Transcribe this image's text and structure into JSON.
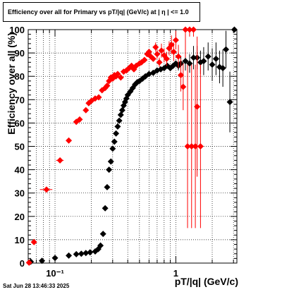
{
  "title": "Efficiency over all for Primary vs pT/|q| (GeV/c) at |  η  | <= 1.0",
  "timestamp": "Sat Jun 28 13:46:33 2025",
  "chart_data": {
    "type": "scatter",
    "title": "Efficiency over all for Primary vs pT/|q| (GeV/c) at |  η  | <= 1.0",
    "xlabel": "pT/|q| (GeV/c)",
    "ylabel": "Efficiency over all (%)",
    "xscale": "log",
    "xlim": [
      0.06,
      3.2
    ],
    "ylim": [
      0,
      100
    ],
    "grid": true,
    "x_ticks": [
      {
        "value": 0.1,
        "label": "10⁻¹"
      },
      {
        "value": 1,
        "label": "1"
      }
    ],
    "y_ticks": [
      0,
      10,
      20,
      30,
      40,
      50,
      60,
      70,
      80,
      90,
      100
    ],
    "series": [
      {
        "color": "#000000",
        "marker": "diamond",
        "points": [
          {
            "x": 0.063,
            "y": 0.6
          },
          {
            "x": 0.078,
            "y": 1.0
          },
          {
            "x": 0.1,
            "y": 2.2
          },
          {
            "x": 0.13,
            "y": 3.2
          },
          {
            "x": 0.15,
            "y": 3.8
          },
          {
            "x": 0.165,
            "y": 4.0
          },
          {
            "x": 0.18,
            "y": 4.3
          },
          {
            "x": 0.195,
            "y": 4.6
          },
          {
            "x": 0.215,
            "y": 5.0
          },
          {
            "x": 0.228,
            "y": 6.0
          },
          {
            "x": 0.238,
            "y": 7.5
          },
          {
            "x": 0.25,
            "y": 12.5
          },
          {
            "x": 0.26,
            "y": 23.5
          },
          {
            "x": 0.27,
            "y": 32.5
          },
          {
            "x": 0.28,
            "y": 40.0
          },
          {
            "x": 0.29,
            "y": 43.5
          },
          {
            "x": 0.3,
            "y": 49.0
          },
          {
            "x": 0.31,
            "y": 52.0
          },
          {
            "x": 0.32,
            "y": 55.5
          },
          {
            "x": 0.33,
            "y": 58.5
          },
          {
            "x": 0.34,
            "y": 61.0
          },
          {
            "x": 0.35,
            "y": 63.5
          },
          {
            "x": 0.36,
            "y": 65.5
          },
          {
            "x": 0.37,
            "y": 67.5
          },
          {
            "x": 0.38,
            "y": 69.0
          },
          {
            "x": 0.39,
            "y": 70.5
          },
          {
            "x": 0.4,
            "y": 72.0
          },
          {
            "x": 0.42,
            "y": 73.5
          },
          {
            "x": 0.44,
            "y": 75.0
          },
          {
            "x": 0.46,
            "y": 76.5
          },
          {
            "x": 0.48,
            "y": 77.5
          },
          {
            "x": 0.5,
            "y": 78.0
          },
          {
            "x": 0.53,
            "y": 79.0
          },
          {
            "x": 0.56,
            "y": 80.0
          },
          {
            "x": 0.6,
            "y": 81.0
          },
          {
            "x": 0.65,
            "y": 81.5
          },
          {
            "x": 0.7,
            "y": 82.5
          },
          {
            "x": 0.75,
            "y": 83.0
          },
          {
            "x": 0.8,
            "y": 83.5
          },
          {
            "x": 0.85,
            "y": 84.5
          },
          {
            "x": 0.9,
            "y": 83.5
          },
          {
            "x": 0.95,
            "y": 84.5
          },
          {
            "x": 1.0,
            "y": 85.5
          },
          {
            "x": 1.05,
            "y": 84.5,
            "err": 2
          },
          {
            "x": 1.1,
            "y": 85.5,
            "err": 3
          },
          {
            "x": 1.2,
            "y": 86.5,
            "err": 4
          },
          {
            "x": 1.3,
            "y": 85.5,
            "err": 4
          },
          {
            "x": 1.4,
            "y": 88.0,
            "err": 5
          },
          {
            "x": 1.5,
            "y": 88.0,
            "err": 5
          },
          {
            "x": 1.6,
            "y": 86.0,
            "err": 5
          },
          {
            "x": 1.7,
            "y": 86.5,
            "err": 6
          },
          {
            "x": 1.85,
            "y": 88.5,
            "err": 6
          },
          {
            "x": 2.0,
            "y": 85.0,
            "err": 7
          },
          {
            "x": 2.15,
            "y": 87.5,
            "err": 7
          },
          {
            "x": 2.3,
            "y": 84.0,
            "err": 7
          },
          {
            "x": 2.45,
            "y": 83.5,
            "err": 8
          },
          {
            "x": 2.6,
            "y": 91.5,
            "err": 8
          },
          {
            "x": 2.8,
            "y": 69.0,
            "err": 13
          },
          {
            "x": 3.05,
            "y": 100.0,
            "err": 0
          }
        ]
      },
      {
        "color": "#ff0000",
        "marker": "diamond",
        "points": [
          {
            "x": 0.061,
            "y": 0.2
          },
          {
            "x": 0.067,
            "y": 9.0
          },
          {
            "x": 0.085,
            "y": 31.5,
            "xerr": 0.01
          },
          {
            "x": 0.11,
            "y": 44.0,
            "xerr": 0.008
          },
          {
            "x": 0.13,
            "y": 52.5
          },
          {
            "x": 0.15,
            "y": 60.5
          },
          {
            "x": 0.16,
            "y": 61.5
          },
          {
            "x": 0.18,
            "y": 65.5
          },
          {
            "x": 0.19,
            "y": 68.5
          },
          {
            "x": 0.2,
            "y": 69.5
          },
          {
            "x": 0.215,
            "y": 70.5
          },
          {
            "x": 0.23,
            "y": 71.0
          },
          {
            "x": 0.245,
            "y": 74.0
          },
          {
            "x": 0.26,
            "y": 75.0
          },
          {
            "x": 0.27,
            "y": 76.0
          },
          {
            "x": 0.28,
            "y": 78.0
          },
          {
            "x": 0.29,
            "y": 79.5
          },
          {
            "x": 0.3,
            "y": 79.0
          },
          {
            "x": 0.31,
            "y": 80.5
          },
          {
            "x": 0.32,
            "y": 80.0
          },
          {
            "x": 0.33,
            "y": 81.0
          },
          {
            "x": 0.35,
            "y": 79.5
          },
          {
            "x": 0.37,
            "y": 82.0
          },
          {
            "x": 0.39,
            "y": 82.5
          },
          {
            "x": 0.41,
            "y": 83.5
          },
          {
            "x": 0.43,
            "y": 84.5
          },
          {
            "x": 0.45,
            "y": 83.0
          },
          {
            "x": 0.47,
            "y": 84.5
          },
          {
            "x": 0.5,
            "y": 85.5
          },
          {
            "x": 0.52,
            "y": 86.0
          },
          {
            "x": 0.55,
            "y": 87.0
          },
          {
            "x": 0.58,
            "y": 89.5
          },
          {
            "x": 0.6,
            "y": 90.5
          },
          {
            "x": 0.62,
            "y": 88.5
          },
          {
            "x": 0.65,
            "y": 87.5
          },
          {
            "x": 0.68,
            "y": 92.5,
            "err": 2
          },
          {
            "x": 0.7,
            "y": 89.5,
            "err": 2
          },
          {
            "x": 0.73,
            "y": 86.0,
            "err": 2
          },
          {
            "x": 0.76,
            "y": 91.0,
            "err": 3
          },
          {
            "x": 0.8,
            "y": 89.0,
            "err": 3
          },
          {
            "x": 0.84,
            "y": 87.5,
            "err": 3
          },
          {
            "x": 0.88,
            "y": 92.0,
            "err": 3
          },
          {
            "x": 0.92,
            "y": 93.5,
            "err": 4
          },
          {
            "x": 0.96,
            "y": 90.5,
            "err": 4
          },
          {
            "x": 1.0,
            "y": 95.5,
            "err": 4
          },
          {
            "x": 1.05,
            "y": 88.5,
            "err": 5
          },
          {
            "x": 1.1,
            "y": 80.5,
            "err": 7
          },
          {
            "x": 1.15,
            "y": 75.5,
            "err": 10
          },
          {
            "x": 1.2,
            "y": 100.0,
            "err": 12
          },
          {
            "x": 1.25,
            "y": 50.0,
            "err": 35
          },
          {
            "x": 1.3,
            "y": 100.0,
            "err": 3
          },
          {
            "x": 1.35,
            "y": 50.0,
            "err": 35
          },
          {
            "x": 1.4,
            "y": 100.0,
            "err": 3
          },
          {
            "x": 1.45,
            "y": 50.0,
            "err": 35
          },
          {
            "x": 1.5,
            "y": 67.0,
            "err": 30
          },
          {
            "x": 1.6,
            "y": 50.0,
            "err": 35
          }
        ]
      }
    ]
  }
}
